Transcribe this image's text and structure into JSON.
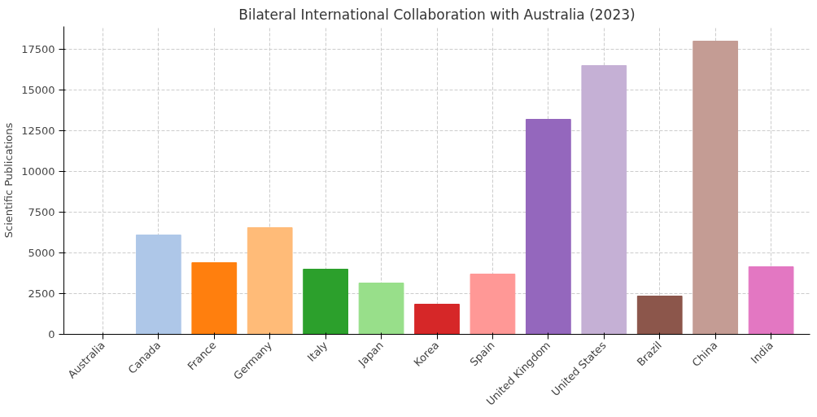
{
  "chart_data": {
    "type": "bar",
    "title": "Bilateral International Collaboration with Australia (2023)",
    "ylabel": "Scientific Publications",
    "categories": [
      "Australia",
      "Canada",
      "France",
      "Germany",
      "Italy",
      "Japan",
      "Korea",
      "Spain",
      "United Kingdom",
      "United States",
      "Brazil",
      "China",
      "India"
    ],
    "values": [
      0,
      6100,
      4400,
      6550,
      4000,
      3150,
      1850,
      3700,
      13200,
      16500,
      2350,
      18000,
      4150
    ],
    "colors": [
      "#1f77b4",
      "#aec7e8",
      "#ff7f0e",
      "#ffbb78",
      "#2ca02c",
      "#98df8a",
      "#d62728",
      "#ff9896",
      "#9467bd",
      "#c5b0d5",
      "#8c564b",
      "#c49c94",
      "#e377c2"
    ],
    "ylim": [
      0,
      18900
    ],
    "yticks": [
      0,
      2500,
      5000,
      7500,
      10000,
      12500,
      15000,
      17500
    ],
    "grid": true
  }
}
